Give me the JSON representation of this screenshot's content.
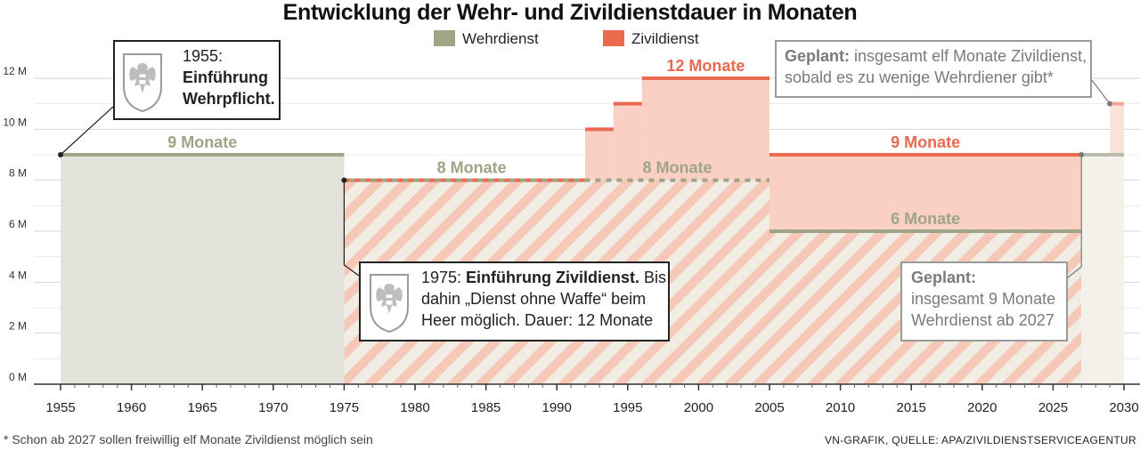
{
  "title": "Entwicklung der Wehr- und Zivildienstdauer in Monaten",
  "legend": [
    {
      "label": "Wehrdienst",
      "color": "#9ea585"
    },
    {
      "label": "Zivildienst",
      "color": "#ea6a4f"
    }
  ],
  "footnote": "* Schon ab 2027 sollen freiwillig elf Monate Zivildienst möglich sein",
  "source": "VN-GRAFIK, QUELLE: APA/ZIVILDIENSTSERVICEAGENTUR",
  "annotations": {
    "a1955": {
      "year": "1955:",
      "bold1": "Einführung",
      "bold2": "Wehrpflicht."
    },
    "a1975": {
      "prefix": "1975: ",
      "bold": "Einführung Zivildienst.",
      "rest1": " Bis",
      "line2": "dahin „Dienst ohne Waffe“ beim",
      "line3": "Heer möglich. Dauer: 12 Monate"
    },
    "geplant_zivil": {
      "bold": "Geplant:",
      "rest1": " insgesamt elf Monate Zivildienst,",
      "line2": "sobald es zu wenige Wehrdiener gibt*"
    },
    "geplant_wehr": {
      "bold": "Geplant:",
      "line2": "insgesamt 9 Monate",
      "line3": "Wehrdienst ab 2027"
    }
  },
  "chart_data": {
    "type": "area",
    "title": "Entwicklung der Wehr- und Zivildienstdauer in Monaten",
    "xlabel": "",
    "ylabel": "",
    "xlim": [
      1955,
      2030
    ],
    "ylim": [
      0,
      12
    ],
    "x_ticks": [
      1955,
      1960,
      1965,
      1970,
      1975,
      1980,
      1985,
      1990,
      1995,
      2000,
      2005,
      2010,
      2015,
      2020,
      2025,
      2030
    ],
    "y_ticks": [
      0,
      2,
      4,
      6,
      8,
      10,
      12
    ],
    "y_tick_labels": [
      "0 M",
      "2 M",
      "4 M",
      "6 M",
      "8 M",
      "10 M",
      "12 M"
    ],
    "grid": true,
    "legend_position": "top-center",
    "series": [
      {
        "name": "Wehrdienst",
        "color": "#9ea585",
        "steps": [
          {
            "start": 1955,
            "end": 1975,
            "value": 9
          },
          {
            "start": 1975,
            "end": 2005,
            "value": 8
          },
          {
            "start": 2005,
            "end": 2027,
            "value": 6
          },
          {
            "start": 2027,
            "end": 2030,
            "value": 9,
            "planned": true
          }
        ]
      },
      {
        "name": "Zivildienst",
        "color": "#ea6a4f",
        "steps": [
          {
            "start": 1975,
            "end": 1992,
            "value": 8
          },
          {
            "start": 1992,
            "end": 1994,
            "value": 10
          },
          {
            "start": 1994,
            "end": 1996,
            "value": 11
          },
          {
            "start": 1996,
            "end": 2005,
            "value": 12
          },
          {
            "start": 2005,
            "end": 2027,
            "value": 9
          },
          {
            "start": 2027,
            "end": 2029,
            "value": 9,
            "planned": true
          },
          {
            "start": 2029,
            "end": 2030,
            "value": 11,
            "planned": true
          }
        ]
      }
    ],
    "segment_labels": [
      {
        "text": "9 Monate",
        "x": 1965,
        "y": 9,
        "series": "Wehrdienst"
      },
      {
        "text": "8 Monate",
        "x": 1984,
        "y": 8,
        "series": "Wehrdienst"
      },
      {
        "text": "8 Monate",
        "x": 1998.5,
        "y": 8,
        "series": "Wehrdienst"
      },
      {
        "text": "12 Monate",
        "x": 2000.5,
        "y": 12,
        "series": "Zivildienst"
      },
      {
        "text": "9 Monate",
        "x": 2016,
        "y": 9,
        "series": "Zivildienst"
      },
      {
        "text": "6 Monate",
        "x": 2016,
        "y": 6,
        "series": "Wehrdienst"
      }
    ]
  }
}
